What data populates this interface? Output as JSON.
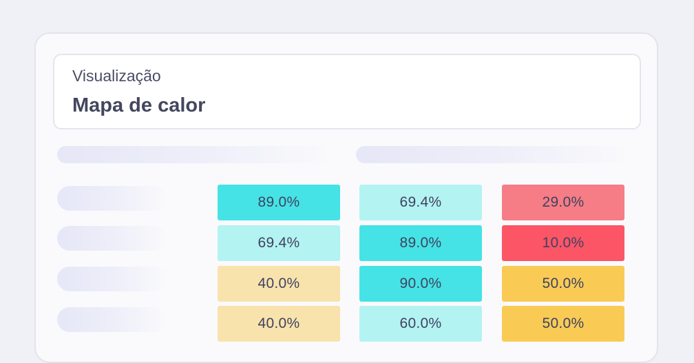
{
  "header": {
    "subtitle": "Visualização",
    "title": "Mapa de calor"
  },
  "colors": {
    "teal_strong": "#45e3e5",
    "teal_light": "#b3f3f2",
    "sand_light": "#f8e3ac",
    "amber": "#f9cb55",
    "red_light": "#f67d85",
    "red_strong": "#fb5566"
  },
  "heatmap": {
    "rows": [
      {
        "cells": [
          {
            "text": "89.0%",
            "color": "#45e3e5"
          },
          {
            "text": "69.4%",
            "color": "#b3f3f2"
          },
          {
            "text": "29.0%",
            "color": "#f67d85"
          }
        ]
      },
      {
        "cells": [
          {
            "text": "69.4%",
            "color": "#b3f3f2"
          },
          {
            "text": "89.0%",
            "color": "#45e3e5"
          },
          {
            "text": "10.0%",
            "color": "#fb5566"
          }
        ]
      },
      {
        "cells": [
          {
            "text": "40.0%",
            "color": "#f8e3ac"
          },
          {
            "text": "90.0%",
            "color": "#45e3e5"
          },
          {
            "text": "50.0%",
            "color": "#f9cb55"
          }
        ]
      },
      {
        "cells": [
          {
            "text": "40.0%",
            "color": "#f8e3ac"
          },
          {
            "text": "60.0%",
            "color": "#b3f3f2"
          },
          {
            "text": "50.0%",
            "color": "#f9cb55"
          }
        ]
      }
    ]
  }
}
